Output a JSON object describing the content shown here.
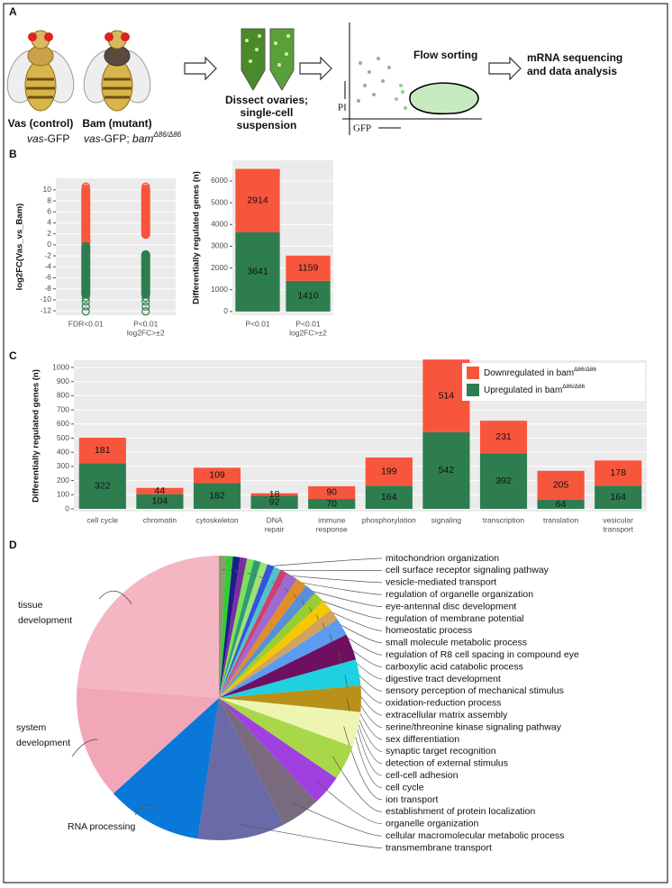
{
  "panel_labels": [
    "A",
    "B",
    "C",
    "D"
  ],
  "diagram": {
    "flies": [
      {
        "label": "Vas (control)"
      },
      {
        "label": "Bam (mutant)"
      }
    ],
    "genotypes": [
      [
        "vas",
        "-GFP"
      ],
      [
        "vas",
        "-GFP; ",
        "bam",
        "Δ86/Δ86"
      ]
    ],
    "step_dissect": [
      "Dissect ovaries;",
      "single-cell",
      "suspension"
    ],
    "flow_sorting": "Flow sorting",
    "flow_axis_y": "PI",
    "flow_axis_x": "GFP",
    "step_sequencing": [
      "mRNA sequencing",
      "and data analysis"
    ]
  },
  "chart_data": [
    {
      "type": "strip",
      "y_label": "log2FC(Vas_vs_Bam)",
      "categories": [
        [
          "FDR<0.01"
        ],
        [
          "P<0.01",
          "log2FC>±2"
        ]
      ],
      "ylim": [
        -12.8,
        12.1
      ],
      "yticks": [
        -12,
        -10,
        -8,
        -6,
        -4,
        -2,
        0,
        2,
        4,
        6,
        8,
        10
      ],
      "grid": true,
      "series": [
        {
          "color": "#f8553d",
          "low": [
            0.2,
            1.9
          ],
          "high": [
            10,
            10
          ],
          "outliers": [
            [
              10.3,
              10.6
            ],
            [
              10.3,
              10.6
            ]
          ]
        },
        {
          "color": "#2e7d4f",
          "low": [
            -9,
            -9
          ],
          "high": [
            -0.3,
            -1.8
          ],
          "outliers": [
            [
              -9.6,
              -10.3,
              -11.2,
              -12.1
            ],
            [
              -9.6,
              -10.3,
              -11.2,
              -12.1
            ]
          ]
        }
      ]
    },
    {
      "type": "bar",
      "stacked": true,
      "y_label": "Differentially regulated genes (n)",
      "categories": [
        [
          "P<0.01"
        ],
        [
          "P<0.01",
          "log2FC>±2"
        ]
      ],
      "ylim": [
        -170,
        6950
      ],
      "yticks": [
        0,
        1000,
        2000,
        3000,
        4000,
        5000,
        6000
      ],
      "grid": true,
      "series": [
        {
          "color": "#2e7d4f",
          "values": [
            3641,
            1410
          ]
        },
        {
          "color": "#f8553d",
          "values": [
            2914,
            1159
          ]
        }
      ]
    },
    {
      "type": "bar",
      "stacked": true,
      "y_label": "Differentially regulated genes (n)",
      "categories": [
        [
          "cell cycle"
        ],
        [
          "chromatin"
        ],
        [
          "cytoskeleton"
        ],
        [
          "DNA",
          "repair"
        ],
        [
          "immune",
          "response"
        ],
        [
          "phosphorylation"
        ],
        [
          "signaling"
        ],
        [
          "transcription"
        ],
        [
          "translation"
        ],
        [
          "vesicular",
          "transport"
        ]
      ],
      "ylim": [
        -19,
        1051
      ],
      "yticks": [
        0,
        100,
        200,
        300,
        400,
        500,
        600,
        700,
        800,
        900,
        1000
      ],
      "grid": true,
      "legend": "top-right",
      "series": [
        {
          "name": "Upregulated in bam",
          "name_superscript": "Δ86/Δ86",
          "color": "#2e7d4f",
          "values": [
            322,
            104,
            182,
            92,
            70,
            164,
            542,
            392,
            64,
            164
          ]
        },
        {
          "name": "Downregulated in bam",
          "name_superscript": "Δ86/Δ86",
          "color": "#f8553d",
          "values": [
            181,
            44,
            109,
            18,
            90,
            199,
            514,
            231,
            205,
            178
          ]
        }
      ]
    },
    {
      "type": "pie",
      "categories": [
        [
          "mitochondrion organization"
        ],
        [
          "cell surface receptor signaling pathway"
        ],
        [
          "vesicle-mediated transport"
        ],
        [
          "regulation of organelle organization"
        ],
        [
          "eye-antennal disc development"
        ],
        [
          "regulation of membrane potential"
        ],
        [
          "homeostatic process"
        ],
        [
          "small molecule metabolic process"
        ],
        [
          "regulation of R8 cell spacing in compound eye"
        ],
        [
          "carboxylic acid catabolic process"
        ],
        [
          "digestive tract development"
        ],
        [
          "sensory perception of mechanical stimulus"
        ],
        [
          "oxidation-reduction process"
        ],
        [
          "extracellular matrix assembly"
        ],
        [
          "serine/threonine kinase signaling pathway"
        ],
        [
          "sex differentiation"
        ],
        [
          "synaptic target recognition"
        ],
        [
          "detection of external stimulus"
        ],
        [
          "cell-cell adhesion"
        ],
        [
          "cell cycle"
        ],
        [
          "ion transport"
        ],
        [
          "establishment of protein localization"
        ],
        [
          "organelle organization"
        ],
        [
          "cellular macromolecular metabolic process"
        ],
        [
          "transmembrane transport"
        ],
        [
          "RNA processing"
        ],
        [
          "system",
          "development"
        ],
        [
          "tissue",
          "development"
        ]
      ],
      "values": [
        0.8,
        0.8,
        0.8,
        0.8,
        0.8,
        0.8,
        0.8,
        0.8,
        0.8,
        0.8,
        1.3,
        1.3,
        1.3,
        1.3,
        1.3,
        1.3,
        2,
        3,
        3,
        3,
        4,
        4,
        3.5,
        4.5,
        10,
        11,
        13,
        24
      ],
      "colors": [
        "#8c9b6e",
        "#33cc33",
        "#1c1c8c",
        "#7a2ea0",
        "#7ee05a",
        "#2f9e6e",
        "#a0e07a",
        "#3355dd",
        "#4fc3c8",
        "#d23f6e",
        "#9c6ad0",
        "#e08d2a",
        "#5a8fd8",
        "#9acd32",
        "#f5c800",
        "#d2a35c",
        "#5b9bf0",
        "#6e0f5f",
        "#1fd0e0",
        "#b8901a",
        "#eef5b0",
        "#a8d84a",
        "#a040e0",
        "#7a6a7e",
        "#6a6aa8",
        "#0a78d8",
        "#f2a7b8",
        "#f4b6c2"
      ]
    }
  ]
}
